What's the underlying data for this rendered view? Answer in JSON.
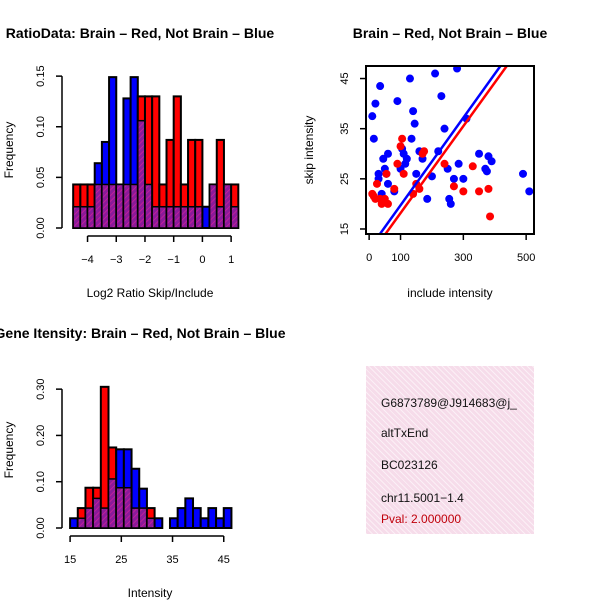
{
  "chart_data": [
    {
      "id": "hist1",
      "type": "bar",
      "title": "RatioData: Brain – Red, Not Brain – Blue",
      "xlabel": "Log2 Ratio Skip/Include",
      "ylabel": "Frequency",
      "xlim": [
        -4.75,
        1.1
      ],
      "ylim": [
        0,
        0.16
      ],
      "xticks": [
        -4,
        -3,
        -2,
        -1,
        0,
        1
      ],
      "xtick_labels": [
        "−4",
        "−3",
        "−2",
        "−1",
        "0",
        "1"
      ],
      "yticks": [
        0,
        0.05,
        0.1,
        0.15
      ],
      "ytick_labels": [
        "0.00",
        "0.05",
        "0.10",
        "0.15"
      ],
      "bin_start": -4.5,
      "bin_width": 0.25,
      "series": [
        {
          "name": "Brain",
          "color": "#ff0000",
          "values": [
            0.043,
            0.043,
            0.043,
            0.043,
            0.043,
            0.043,
            0.043,
            0.043,
            0.043,
            0.13,
            0.13,
            0.13,
            0.043,
            0.087,
            0.13,
            0.043,
            0.087,
            0.087,
            0,
            0.043,
            0.087,
            0.043,
            0.043
          ]
        },
        {
          "name": "Not Brain",
          "color": "#0000ff",
          "values": [
            0.021,
            0.021,
            0.021,
            0.064,
            0.085,
            0.149,
            0.043,
            0.128,
            0.149,
            0.106,
            0.043,
            0.021,
            0.021,
            0.021,
            0.021,
            0.021,
            0.021,
            0.021,
            0.021,
            0.043,
            0.021,
            0.043,
            0.021
          ]
        }
      ]
    },
    {
      "id": "scatter",
      "type": "scatter",
      "title": "Brain – Red, Not Brain – Blue",
      "xlabel": "include intensity",
      "ylabel": "skip intensity",
      "xlim": [
        -10,
        525
      ],
      "ylim": [
        14,
        47.5
      ],
      "xticks": [
        0,
        100,
        300,
        500
      ],
      "xtick_labels": [
        "0",
        "100",
        "300",
        "500"
      ],
      "yticks": [
        15,
        25,
        35,
        45
      ],
      "ytick_labels": [
        "15",
        "25",
        "35",
        "45"
      ],
      "series": [
        {
          "name": "Not Brain",
          "color": "#0000ff",
          "points": [
            [
              10,
              37.5
            ],
            [
              15,
              33
            ],
            [
              20,
              40
            ],
            [
              35,
              43.5
            ],
            [
              30,
              25
            ],
            [
              40,
              22
            ],
            [
              45,
              29
            ],
            [
              50,
              27
            ],
            [
              55,
              26
            ],
            [
              60,
              24
            ],
            [
              80,
              22.5
            ],
            [
              90,
              40.5
            ],
            [
              100,
              27
            ],
            [
              110,
              30
            ],
            [
              115,
              28
            ],
            [
              120,
              29
            ],
            [
              130,
              45
            ],
            [
              140,
              38.5
            ],
            [
              145,
              36
            ],
            [
              150,
              26
            ],
            [
              160,
              30.5
            ],
            [
              170,
              29
            ],
            [
              185,
              21
            ],
            [
              200,
              25.5
            ],
            [
              210,
              46
            ],
            [
              220,
              30.5
            ],
            [
              230,
              41.5
            ],
            [
              240,
              35
            ],
            [
              250,
              27
            ],
            [
              255,
              21
            ],
            [
              260,
              20
            ],
            [
              270,
              25
            ],
            [
              280,
              47
            ],
            [
              285,
              28
            ],
            [
              300,
              25
            ],
            [
              310,
              37
            ],
            [
              350,
              30
            ],
            [
              370,
              27
            ],
            [
              375,
              26.5
            ],
            [
              380,
              29.5
            ],
            [
              390,
              28.5
            ],
            [
              490,
              26
            ],
            [
              510,
              22.5
            ],
            [
              30,
              26
            ],
            [
              60,
              30
            ],
            [
              105,
              31
            ],
            [
              135,
              33
            ]
          ]
        },
        {
          "name": "Brain",
          "color": "#ff0000",
          "points": [
            [
              10,
              22
            ],
            [
              15,
              21.5
            ],
            [
              20,
              21
            ],
            [
              25,
              24
            ],
            [
              35,
              21
            ],
            [
              40,
              20
            ],
            [
              50,
              21
            ],
            [
              55,
              26
            ],
            [
              60,
              20
            ],
            [
              80,
              23
            ],
            [
              90,
              28
            ],
            [
              100,
              31.5
            ],
            [
              105,
              33
            ],
            [
              110,
              26
            ],
            [
              140,
              22
            ],
            [
              150,
              24
            ],
            [
              160,
              23
            ],
            [
              170,
              30
            ],
            [
              175,
              30.5
            ],
            [
              240,
              28
            ],
            [
              270,
              23.5
            ],
            [
              300,
              22.5
            ],
            [
              330,
              27.5
            ],
            [
              350,
              22.5
            ],
            [
              380,
              23
            ],
            [
              385,
              17.5
            ]
          ]
        }
      ],
      "lines": [
        {
          "name": "Not Brain fit",
          "color": "#0000ff",
          "intercept": 11.0,
          "slope": 0.0873
        },
        {
          "name": "Brain fit",
          "color": "#ff0000",
          "intercept": 9.5,
          "slope": 0.0867
        }
      ]
    },
    {
      "id": "hist2",
      "type": "bar",
      "title": "Gene Itensity: Brain – Red, Not Brain – Blue",
      "xlabel": "Intensity",
      "ylabel": "Frequency",
      "xlim": [
        14.2,
        47
      ],
      "ylim": [
        0,
        0.35
      ],
      "xticks": [
        15,
        25,
        35,
        45
      ],
      "xtick_labels": [
        "15",
        "25",
        "35",
        "45"
      ],
      "yticks": [
        0,
        0.1,
        0.2,
        0.3
      ],
      "ytick_labels": [
        "0.00",
        "0.10",
        "0.20",
        "0.30"
      ],
      "bin_start": 15,
      "bin_width": 1.5,
      "series": [
        {
          "name": "Brain",
          "color": "#ff0000",
          "values": [
            0,
            0.043,
            0.087,
            0.087,
            0.305,
            0.174,
            0.087,
            0.087,
            0.043,
            0.043,
            0.043,
            0,
            0,
            0,
            0,
            0,
            0,
            0,
            0,
            0,
            0
          ]
        },
        {
          "name": "Not Brain",
          "color": "#0000ff",
          "values": [
            0.021,
            0.021,
            0.043,
            0.064,
            0.043,
            0.106,
            0.17,
            0.17,
            0.128,
            0.085,
            0.021,
            0.021,
            0,
            0.021,
            0.043,
            0.064,
            0.043,
            0.021,
            0.043,
            0.021,
            0.043
          ]
        }
      ]
    }
  ],
  "info_panel": {
    "id_line": "G6873789@J914683@j_",
    "event_type": "altTxEnd",
    "accession": "BC023126",
    "location": "chr11.5001−1.4",
    "pval": "Pval: 2.000000"
  },
  "colors": {
    "brain": "#ff0000",
    "not_brain": "#0000ff",
    "overlap": "#8b1a9a",
    "overlap_hatch": "#d0209a",
    "panel_bg": "#f6dcea",
    "pval_text": "#c0000a"
  }
}
